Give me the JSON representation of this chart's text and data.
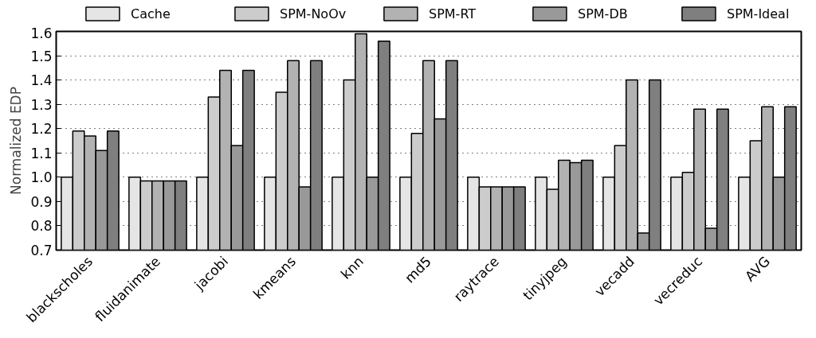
{
  "chart_data": {
    "type": "bar",
    "ylabel": "Normalized EDP",
    "categories": [
      "blackscholes",
      "fluidanimate",
      "jacobi",
      "kmeans",
      "knn",
      "md5",
      "raytrace",
      "tinyjpeg",
      "vecadd",
      "vecreduc",
      "AVG"
    ],
    "series": [
      {
        "name": "Cache",
        "color": "#e5e5e5",
        "values": [
          1.0,
          1.0,
          1.0,
          1.0,
          1.0,
          1.0,
          1.0,
          1.0,
          1.0,
          1.0,
          1.0
        ]
      },
      {
        "name": "SPM-NoOv",
        "color": "#cccccc",
        "values": [
          1.19,
          0.985,
          1.33,
          1.35,
          1.4,
          1.18,
          0.96,
          0.95,
          1.13,
          1.02,
          1.15
        ]
      },
      {
        "name": "SPM-RT",
        "color": "#b2b2b2",
        "values": [
          1.17,
          0.985,
          1.44,
          1.48,
          1.59,
          1.48,
          0.96,
          1.07,
          1.4,
          1.28,
          1.29
        ]
      },
      {
        "name": "SPM-DB",
        "color": "#999999",
        "values": [
          1.11,
          0.985,
          1.13,
          0.96,
          1.0,
          1.24,
          0.96,
          1.06,
          0.77,
          0.79,
          1.0
        ]
      },
      {
        "name": "SPM-Ideal",
        "color": "#7f7f7f",
        "values": [
          1.19,
          0.985,
          1.44,
          1.48,
          1.56,
          1.48,
          0.96,
          1.07,
          1.4,
          1.28,
          1.29
        ]
      }
    ],
    "ylim": [
      0.7,
      1.6
    ],
    "yticks": [
      0.7,
      0.8,
      0.9,
      {
        "value": 1.0,
        "label": "1.0"
      },
      1.1,
      1.2,
      1.3,
      1.4,
      1.5,
      1.6
    ],
    "grid": "y",
    "legend": "top"
  }
}
